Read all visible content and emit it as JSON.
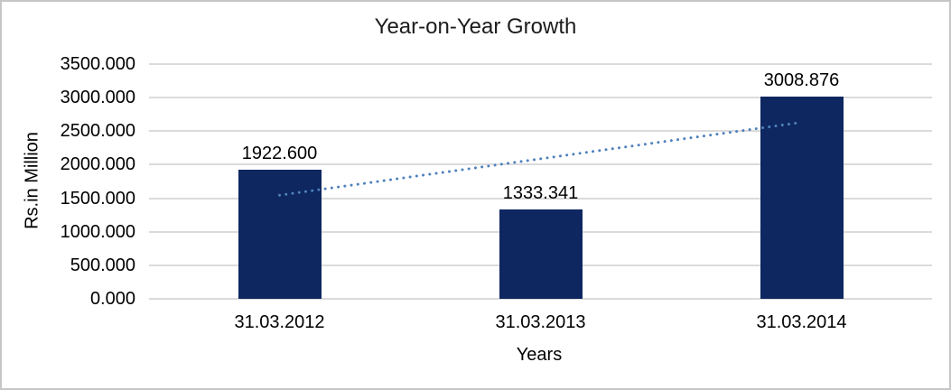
{
  "window": {
    "background": "#FFFFFF",
    "border_color": "#C6C6C6"
  },
  "chart_data": {
    "type": "bar",
    "title": "Year-on-Year Growth",
    "xlabel": "Years",
    "ylabel": "Rs.in Million",
    "categories": [
      "31.03.2012",
      "31.03.2013",
      "31.03.2014"
    ],
    "values": [
      1922.6,
      1333.341,
      3008.876
    ],
    "value_labels": [
      "1922.600",
      "1333.341",
      "3008.876"
    ],
    "y_ticks": [
      {
        "value": 0,
        "label": "0.000"
      },
      {
        "value": 500,
        "label": "500.000"
      },
      {
        "value": 1000,
        "label": "1000.000"
      },
      {
        "value": 1500,
        "label": "1500.000"
      },
      {
        "value": 2000,
        "label": "2000.000"
      },
      {
        "value": 2500,
        "label": "2500.000"
      },
      {
        "value": 3000,
        "label": "3000.000"
      },
      {
        "value": 3500,
        "label": "3500.000"
      }
    ],
    "ylim": [
      0,
      3500
    ],
    "grid": true,
    "legend": false,
    "colors": {
      "bar": "#0E2760",
      "gridline": "#DBDBDB",
      "trendline": "#4F81BD",
      "text": "#000000"
    },
    "trendline": {
      "type": "linear",
      "style": "dotted",
      "start_category": "31.03.2012",
      "start_value": 1545,
      "end_category": "31.03.2014",
      "end_value": 2631
    }
  }
}
